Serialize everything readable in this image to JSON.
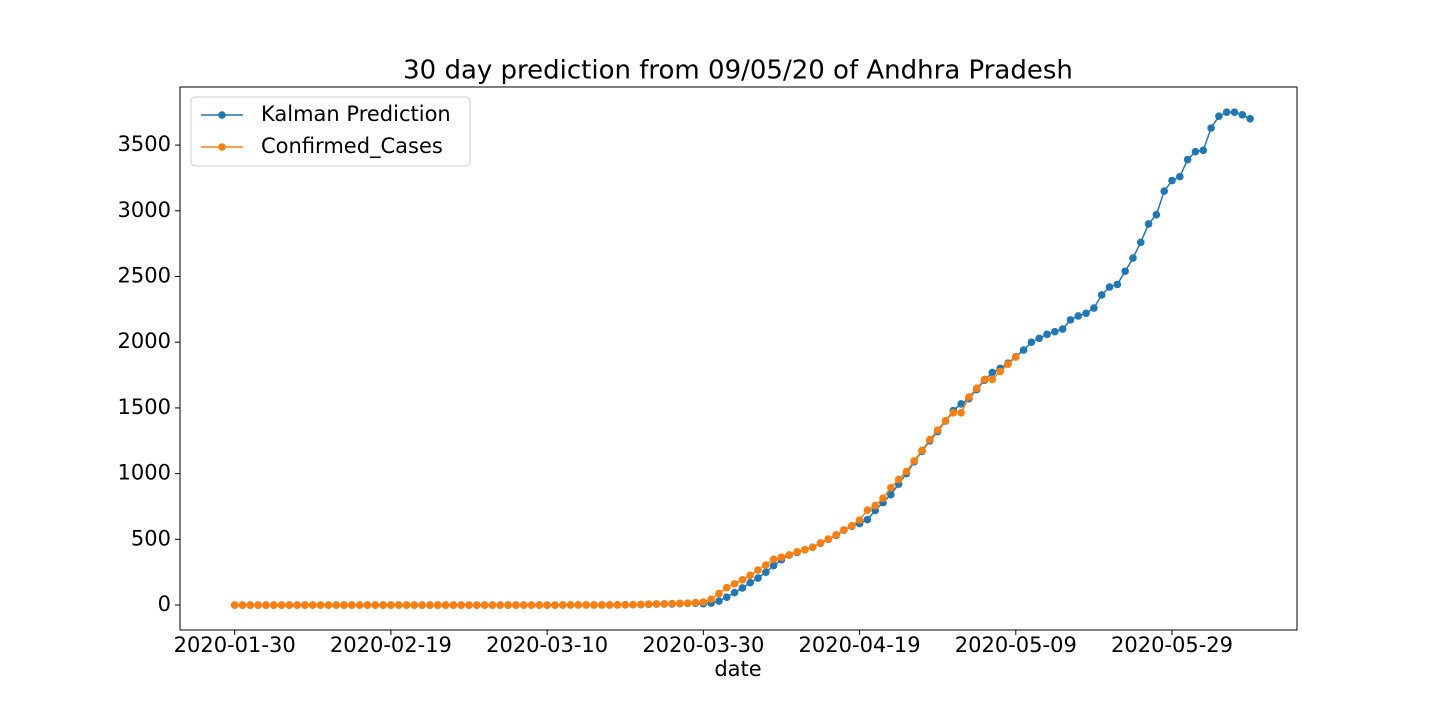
{
  "chart_data": {
    "type": "line",
    "title": "30 day prediction from 09/05/20 of Andhra Pradesh",
    "x_label": "date",
    "x": [
      "2020-01-30",
      "2020-01-31",
      "2020-02-01",
      "2020-02-02",
      "2020-02-03",
      "2020-02-04",
      "2020-02-05",
      "2020-02-06",
      "2020-02-07",
      "2020-02-08",
      "2020-02-09",
      "2020-02-10",
      "2020-02-11",
      "2020-02-12",
      "2020-02-13",
      "2020-02-14",
      "2020-02-15",
      "2020-02-16",
      "2020-02-17",
      "2020-02-18",
      "2020-02-19",
      "2020-02-20",
      "2020-02-21",
      "2020-02-22",
      "2020-02-23",
      "2020-02-24",
      "2020-02-25",
      "2020-02-26",
      "2020-02-27",
      "2020-02-28",
      "2020-02-29",
      "2020-03-01",
      "2020-03-02",
      "2020-03-03",
      "2020-03-04",
      "2020-03-05",
      "2020-03-06",
      "2020-03-07",
      "2020-03-08",
      "2020-03-09",
      "2020-03-10",
      "2020-03-11",
      "2020-03-12",
      "2020-03-13",
      "2020-03-14",
      "2020-03-15",
      "2020-03-16",
      "2020-03-17",
      "2020-03-18",
      "2020-03-19",
      "2020-03-20",
      "2020-03-21",
      "2020-03-22",
      "2020-03-23",
      "2020-03-24",
      "2020-03-25",
      "2020-03-26",
      "2020-03-27",
      "2020-03-28",
      "2020-03-29",
      "2020-03-30",
      "2020-03-31",
      "2020-04-01",
      "2020-04-02",
      "2020-04-03",
      "2020-04-04",
      "2020-04-05",
      "2020-04-06",
      "2020-04-07",
      "2020-04-08",
      "2020-04-09",
      "2020-04-10",
      "2020-04-11",
      "2020-04-12",
      "2020-04-13",
      "2020-04-14",
      "2020-04-15",
      "2020-04-16",
      "2020-04-17",
      "2020-04-18",
      "2020-04-19",
      "2020-04-20",
      "2020-04-21",
      "2020-04-22",
      "2020-04-23",
      "2020-04-24",
      "2020-04-25",
      "2020-04-26",
      "2020-04-27",
      "2020-04-28",
      "2020-04-29",
      "2020-04-30",
      "2020-05-01",
      "2020-05-02",
      "2020-05-03",
      "2020-05-04",
      "2020-05-05",
      "2020-05-06",
      "2020-05-07",
      "2020-05-08",
      "2020-05-09",
      "2020-05-10",
      "2020-05-11",
      "2020-05-12",
      "2020-05-13",
      "2020-05-14",
      "2020-05-15",
      "2020-05-16",
      "2020-05-17",
      "2020-05-18",
      "2020-05-19",
      "2020-05-20",
      "2020-05-21",
      "2020-05-22",
      "2020-05-23",
      "2020-05-24",
      "2020-05-25",
      "2020-05-26",
      "2020-05-27",
      "2020-05-28",
      "2020-05-29",
      "2020-05-30",
      "2020-05-31",
      "2020-06-01",
      "2020-06-02",
      "2020-06-03",
      "2020-06-04",
      "2020-06-05",
      "2020-06-06",
      "2020-06-07",
      "2020-06-08"
    ],
    "series": [
      {
        "name": "Kalman Prediction",
        "color": "#1f77b4",
        "values": [
          0,
          0,
          0,
          0,
          0,
          0,
          0,
          0,
          0,
          0,
          0,
          0,
          0,
          0,
          0,
          0,
          0,
          0,
          0,
          0,
          0,
          0,
          0,
          0,
          0,
          0,
          0,
          0,
          0,
          0,
          0,
          0,
          0,
          0,
          0,
          0,
          0,
          0,
          0,
          0,
          0,
          0,
          0,
          1,
          1,
          1,
          1,
          1,
          1,
          1,
          2,
          3,
          3,
          5,
          7,
          8,
          8,
          11,
          13,
          14,
          10,
          15,
          30,
          60,
          95,
          130,
          170,
          205,
          250,
          300,
          345,
          380,
          400,
          420,
          440,
          470,
          500,
          530,
          570,
          600,
          620,
          650,
          720,
          780,
          840,
          920,
          1000,
          1090,
          1170,
          1250,
          1320,
          1400,
          1480,
          1530,
          1570,
          1640,
          1710,
          1770,
          1800,
          1840,
          1890,
          1940,
          2000,
          2030,
          2060,
          2080,
          2100,
          2170,
          2200,
          2220,
          2260,
          2360,
          2420,
          2440,
          2540,
          2640,
          2760,
          2900,
          2970,
          3150,
          3230,
          3260,
          3390,
          3450,
          3460,
          3630,
          3720,
          3750,
          3750,
          3730,
          3700
        ]
      },
      {
        "name": "Confirmed_Cases",
        "color": "#ff7f0e",
        "values": [
          0,
          0,
          0,
          0,
          0,
          0,
          0,
          0,
          0,
          0,
          0,
          0,
          0,
          0,
          0,
          0,
          0,
          0,
          0,
          0,
          0,
          0,
          0,
          0,
          0,
          0,
          0,
          0,
          0,
          0,
          0,
          0,
          0,
          0,
          0,
          0,
          0,
          0,
          0,
          0,
          0,
          0,
          1,
          1,
          1,
          1,
          1,
          1,
          1,
          2,
          3,
          3,
          5,
          7,
          8,
          8,
          11,
          13,
          14,
          19,
          23,
          44,
          87,
          132,
          161,
          192,
          226,
          266,
          304,
          348,
          363,
          381,
          405,
          420,
          439,
          473,
          502,
          534,
          572,
          603,
          647,
          722,
          757,
          813,
          893,
          955,
          1016,
          1097,
          1177,
          1259,
          1332,
          1403,
          1463,
          1463,
          1583,
          1650,
          1717,
          1717,
          1777,
          1833,
          1887,
          null,
          null,
          null,
          null,
          null,
          null,
          null,
          null,
          null,
          null,
          null,
          null,
          null,
          null,
          null,
          null,
          null,
          null,
          null,
          null,
          null,
          null,
          null,
          null,
          null,
          null,
          null,
          null,
          null,
          null
        ]
      }
    ],
    "xlim": [
      "2020-01-23",
      "2020-06-14"
    ],
    "xticks": [
      "2020-01-30",
      "2020-02-19",
      "2020-03-10",
      "2020-03-30",
      "2020-04-19",
      "2020-05-09",
      "2020-05-29"
    ],
    "ylim": [
      -190,
      3942
    ],
    "yticks": [
      0,
      500,
      1000,
      1500,
      2000,
      2500,
      3000,
      3500
    ],
    "legend": "upper left"
  }
}
